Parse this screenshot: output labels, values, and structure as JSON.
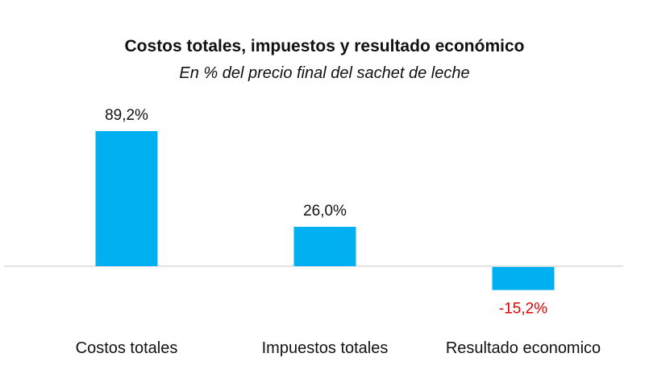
{
  "chart_data": {
    "type": "bar",
    "title": "Costos totales, impuestos y resultado económico",
    "subtitle": "En % del precio final del sachet de leche",
    "categories": [
      "Costos totales",
      "Impuestos totales",
      "Resultado economico"
    ],
    "values": [
      89.2,
      26.0,
      -15.2
    ],
    "data_labels": [
      "89,2%",
      "26,0%",
      "-15,2%"
    ],
    "ylim": [
      -15.2,
      89.2
    ],
    "grid": false,
    "legend": "none",
    "colors": {
      "bar": "#00b0f0",
      "baseline": "#d9d9d9",
      "label": "#111111",
      "negative_label": "#e00000"
    }
  }
}
